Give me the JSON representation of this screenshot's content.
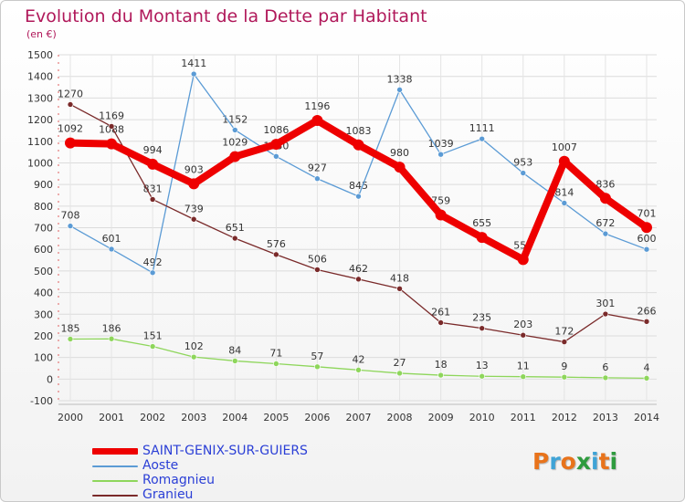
{
  "title": "Evolution du Montant de la Dette par Habitant",
  "subtitle": "(en €)",
  "brand": {
    "text": "Proxiti",
    "colors": [
      "#e8731b",
      "#3fa3d6",
      "#e8731b",
      "#2e9b3e",
      "#3fa3d6",
      "#e8731b",
      "#2e9b3e"
    ]
  },
  "chart_data": {
    "type": "line",
    "title": "Evolution du Montant de la Dette par Habitant",
    "subtitle": "(en €)",
    "x": [
      2000,
      2001,
      2002,
      2003,
      2004,
      2005,
      2006,
      2007,
      2008,
      2009,
      2010,
      2011,
      2012,
      2013,
      2014
    ],
    "ylim": [
      -100,
      1500
    ],
    "yticks": [
      -100,
      0,
      100,
      200,
      300,
      400,
      500,
      600,
      700,
      800,
      900,
      1000,
      1100,
      1200,
      1300,
      1400,
      1500
    ],
    "grid": true,
    "legend_position": "bottom-left",
    "series": [
      {
        "name": "SAINT-GENIX-SUR-GUIERS",
        "color": "#ee0000",
        "values": [
          1092,
          1088,
          994,
          903,
          1029,
          1086,
          1196,
          1083,
          980,
          759,
          655,
          553,
          1007,
          836,
          701
        ],
        "labels": [
          "1092",
          "1088",
          "994",
          "903",
          "1029",
          "1086",
          "1196",
          "1083",
          "980",
          "759",
          "655",
          "553",
          "1007",
          "836",
          "701"
        ]
      },
      {
        "name": "Aoste",
        "color": "#5b9bd5",
        "values": [
          708,
          601,
          492,
          1411,
          1152,
          1030,
          927,
          845,
          1338,
          1039,
          1111,
          953,
          814,
          672,
          600
        ],
        "labels": [
          "708",
          "601",
          "492",
          "1411",
          "1152",
          "1030",
          "927",
          "845",
          "1338",
          "1039",
          "1111",
          "953",
          "814",
          "672",
          "600"
        ]
      },
      {
        "name": "Romagnieu",
        "color": "#8ed65b",
        "values": [
          185,
          186,
          151,
          102,
          84,
          71,
          57,
          42,
          27,
          18,
          13,
          11,
          9,
          6,
          4
        ],
        "labels": [
          "185",
          "186",
          "151",
          "102",
          "84",
          "71",
          "57",
          "42",
          "27",
          "18",
          "13",
          "11",
          "9",
          "6",
          "4"
        ]
      },
      {
        "name": "Granieu",
        "color": "#7a2a2a",
        "values": [
          1270,
          1169,
          831,
          739,
          651,
          576,
          506,
          462,
          418,
          261,
          235,
          203,
          172,
          301,
          266
        ],
        "labels": [
          "1270",
          "1169",
          "831",
          "739",
          "651",
          "576",
          "506",
          "462",
          "418",
          "261",
          "235",
          "203",
          "172",
          "301",
          "266"
        ]
      }
    ]
  }
}
